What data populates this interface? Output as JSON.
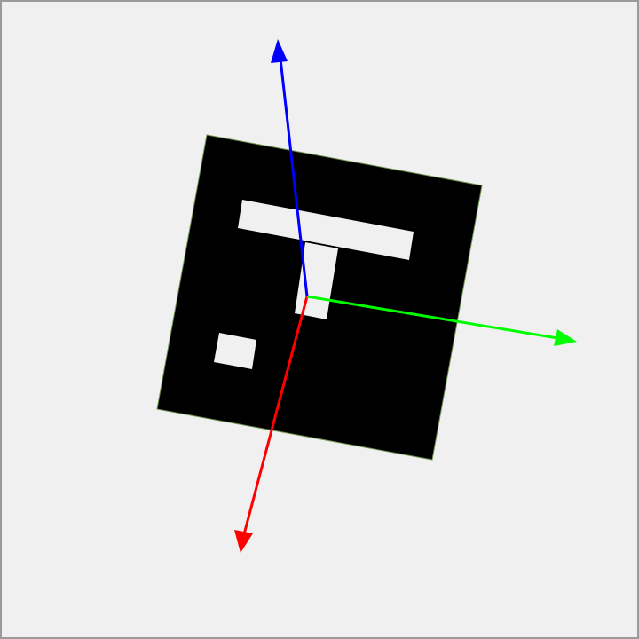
{
  "scene": {
    "background_color": "#f0f0f0",
    "frame_color": "#9a9a9a",
    "marker": {
      "fill": "#000000",
      "edge_color": "#6b8f4a",
      "glyph_color": "#f0f0f0"
    },
    "axes": [
      {
        "name": "x-axis-arrow",
        "color": "#ff0000"
      },
      {
        "name": "y-axis-arrow",
        "color": "#00ff00"
      },
      {
        "name": "z-axis-arrow",
        "color": "#0000ff"
      }
    ]
  }
}
